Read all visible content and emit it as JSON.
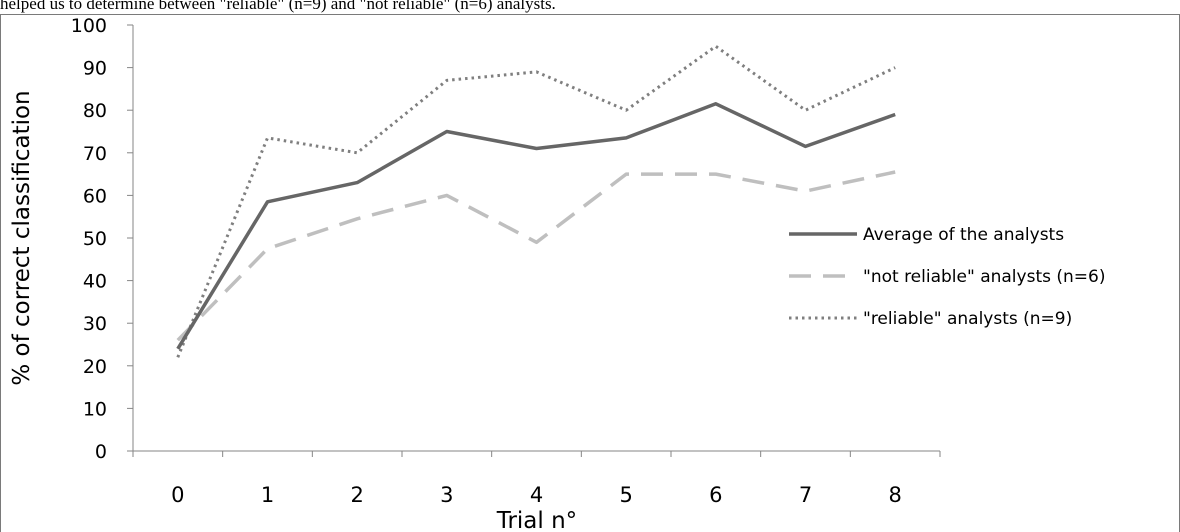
{
  "caption": "helped us to determine between \"reliable\" (n=9) and \"not reliable\" (n=6) analysts.",
  "chart_data": {
    "type": "line",
    "title": "",
    "xlabel": "Trial n°",
    "ylabel": "% of correct classification",
    "categories": [
      "0",
      "1",
      "2",
      "3",
      "4",
      "5",
      "6",
      "7",
      "8"
    ],
    "ylim": [
      0,
      100
    ],
    "yticks": [
      0,
      10,
      20,
      30,
      40,
      50,
      60,
      70,
      80,
      90,
      100
    ],
    "grid": false,
    "legend_position": "right",
    "series": [
      {
        "name": "Average of the analysts",
        "values": [
          24,
          58.5,
          63,
          75,
          71,
          73.5,
          81.5,
          71.5,
          79
        ],
        "color": "#666666",
        "style": "solid"
      },
      {
        "name": "\"not reliable\" analysts (n=6)",
        "values": [
          26,
          47.5,
          54.5,
          60,
          49,
          65,
          65,
          61,
          65.5
        ],
        "color": "#bfbfbf",
        "style": "dashed"
      },
      {
        "name": "\"reliable\" analysts (n=9)",
        "values": [
          22,
          73.5,
          70,
          87,
          89,
          80,
          95,
          80,
          90
        ],
        "color": "#7f7f7f",
        "style": "dotted"
      }
    ]
  }
}
